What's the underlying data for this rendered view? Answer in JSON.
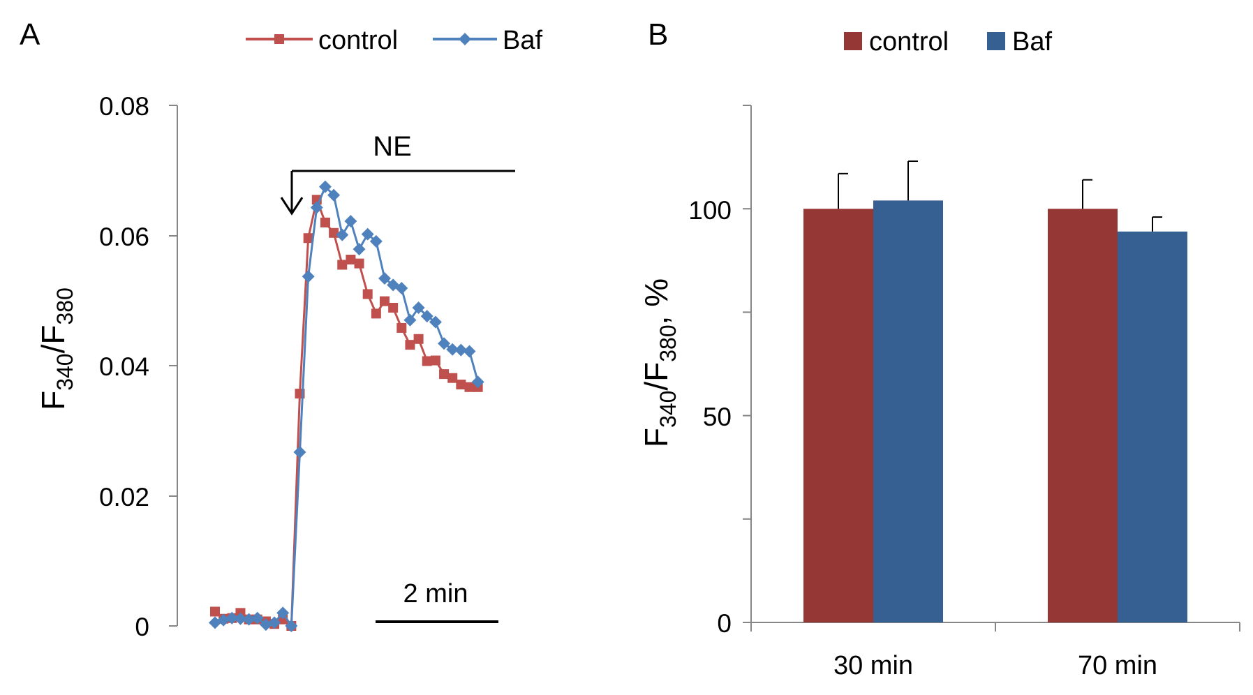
{
  "chart_data": [
    {
      "panel_label": "A",
      "type": "line",
      "ylabel": {
        "main": "F",
        "sub1": "340",
        "sep": "/F",
        "sub2": "380"
      },
      "y_ticks": [
        "0.08",
        "0.06",
        "0.04",
        "0.02",
        "0"
      ],
      "ylim": [
        0,
        0.08
      ],
      "xlim": [
        0,
        34
      ],
      "stimulus": {
        "label": "NE",
        "start_x": 9.0
      },
      "scale_bar": {
        "label": "2 min",
        "length_x": 9
      },
      "series": [
        {
          "name": "control",
          "color": "#c0504d",
          "marker": "square",
          "x": [
            0,
            1,
            2,
            3,
            4,
            5,
            6,
            7,
            8,
            9,
            10,
            11,
            12,
            13,
            14,
            15,
            16,
            17,
            18,
            19,
            20,
            21,
            22,
            23,
            24,
            25,
            26,
            27,
            28,
            29,
            30,
            31
          ],
          "y": [
            0.0022,
            0.0011,
            0.0012,
            0.002,
            0.001,
            0.001,
            0.0007,
            0.0003,
            0.001,
            0.0,
            0.0357,
            0.0596,
            0.0655,
            0.062,
            0.0604,
            0.0555,
            0.0563,
            0.0557,
            0.051,
            0.048,
            0.0499,
            0.0489,
            0.0458,
            0.0432,
            0.0441,
            0.0407,
            0.0408,
            0.0387,
            0.0381,
            0.0371,
            0.0367,
            0.0367
          ]
        },
        {
          "name": "Baf",
          "color": "#4f81bd",
          "marker": "diamond",
          "x": [
            0,
            1,
            2,
            3,
            4,
            5,
            6,
            7,
            8,
            9,
            10,
            11,
            12,
            13,
            14,
            15,
            16,
            17,
            18,
            19,
            20,
            21,
            22,
            23,
            24,
            25,
            26,
            27,
            28,
            29,
            30,
            31
          ],
          "y": [
            0.0005,
            0.0009,
            0.0012,
            0.0011,
            0.001,
            0.0012,
            0.0002,
            0.0005,
            0.002,
            0.0,
            0.0267,
            0.0537,
            0.0643,
            0.0675,
            0.0662,
            0.0601,
            0.0622,
            0.0579,
            0.0602,
            0.0591,
            0.0534,
            0.0524,
            0.0519,
            0.047,
            0.0489,
            0.0476,
            0.0467,
            0.0434,
            0.0425,
            0.0424,
            0.0422,
            0.0375
          ]
        }
      ]
    },
    {
      "panel_label": "B",
      "type": "bar",
      "ylabel": {
        "main": "F",
        "sub1": "340",
        "sep": "/F",
        "sub2": "380",
        "tail": ", %"
      },
      "y_ticks": [
        "100",
        "50",
        "0"
      ],
      "y_tick_values": [
        100,
        50,
        0
      ],
      "y_minor_ticks": [
        125,
        75,
        25
      ],
      "ylim": [
        0,
        125
      ],
      "categories": [
        "30 min",
        "70 min"
      ],
      "series": [
        {
          "name": "control",
          "color": "#953735",
          "values": [
            100,
            100
          ],
          "errors": [
            8.5,
            7
          ]
        },
        {
          "name": "Baf",
          "color": "#366092",
          "values": [
            102,
            94.5
          ],
          "errors": [
            9.5,
            3.5
          ]
        }
      ]
    }
  ]
}
